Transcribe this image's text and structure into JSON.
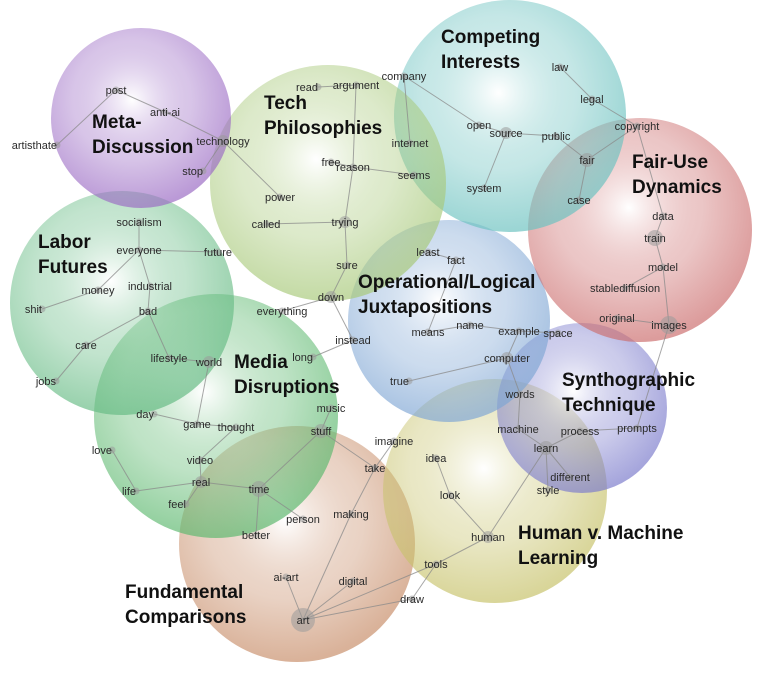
{
  "colors": {
    "meta": "#9b6bc4",
    "tech": "#a8c97a",
    "competing": "#6cc2c0",
    "fairuse": "#cc6e6e",
    "labor": "#66bb84",
    "operational": "#7fa6d4",
    "media": "#5cb86e",
    "synthographic": "#7c7ccc",
    "human": "#c7c26a",
    "fundamental": "#c88e6a"
  },
  "clusters": [
    {
      "key": "fundamental",
      "title_lines": [
        "Fundamental",
        "Comparisons"
      ]
    },
    {
      "key": "media",
      "title_lines": [
        "Media",
        "Disruptions"
      ]
    },
    {
      "key": "human",
      "title_lines": [
        "Human v. Machine",
        "Learning"
      ]
    },
    {
      "key": "synthographic",
      "title_lines": [
        "Synthographic",
        "Technique"
      ]
    },
    {
      "key": "operational",
      "title_lines": [
        "Operational/Logical",
        "Juxtapositions"
      ]
    },
    {
      "key": "labor",
      "title_lines": [
        "Labor",
        "Futures"
      ]
    },
    {
      "key": "fairuse",
      "title_lines": [
        "Fair-Use",
        "Dynamics"
      ]
    },
    {
      "key": "competing",
      "title_lines": [
        "Competing",
        "Interests"
      ]
    },
    {
      "key": "tech",
      "title_lines": [
        "Tech",
        "Philosophies"
      ]
    },
    {
      "key": "meta",
      "title_lines": [
        "Meta-",
        "Discussion"
      ]
    }
  ],
  "words": [
    {
      "id": "post",
      "label": "post"
    },
    {
      "id": "anti-ai",
      "label": "anti-ai"
    },
    {
      "id": "artisthate",
      "label": "artisthate"
    },
    {
      "id": "technology",
      "label": "technology"
    },
    {
      "id": "stop",
      "label": "stop"
    },
    {
      "id": "read",
      "label": "read"
    },
    {
      "id": "argument",
      "label": "argument"
    },
    {
      "id": "company",
      "label": "company"
    },
    {
      "id": "law",
      "label": "law"
    },
    {
      "id": "legal",
      "label": "legal"
    },
    {
      "id": "open",
      "label": "open"
    },
    {
      "id": "source",
      "label": "source"
    },
    {
      "id": "public",
      "label": "public"
    },
    {
      "id": "copyright",
      "label": "copyright"
    },
    {
      "id": "internet",
      "label": "internet"
    },
    {
      "id": "free",
      "label": "free"
    },
    {
      "id": "reason",
      "label": "reason"
    },
    {
      "id": "seems",
      "label": "seems"
    },
    {
      "id": "system",
      "label": "system"
    },
    {
      "id": "fair",
      "label": "fair"
    },
    {
      "id": "case",
      "label": "case"
    },
    {
      "id": "power",
      "label": "power"
    },
    {
      "id": "called",
      "label": "called"
    },
    {
      "id": "trying",
      "label": "trying"
    },
    {
      "id": "data",
      "label": "data"
    },
    {
      "id": "train",
      "label": "train"
    },
    {
      "id": "socialism",
      "label": "socialism"
    },
    {
      "id": "everyone",
      "label": "everyone"
    },
    {
      "id": "future",
      "label": "future"
    },
    {
      "id": "money",
      "label": "money"
    },
    {
      "id": "industrial",
      "label": "industrial"
    },
    {
      "id": "shit",
      "label": "shit"
    },
    {
      "id": "bad",
      "label": "bad"
    },
    {
      "id": "care",
      "label": "care"
    },
    {
      "id": "jobs",
      "label": "jobs"
    },
    {
      "id": "lifestyle",
      "label": "lifestyle"
    },
    {
      "id": "world",
      "label": "world"
    },
    {
      "id": "least",
      "label": "least"
    },
    {
      "id": "fact",
      "label": "fact"
    },
    {
      "id": "sure",
      "label": "sure"
    },
    {
      "id": "down",
      "label": "down"
    },
    {
      "id": "everything",
      "label": "everything"
    },
    {
      "id": "instead",
      "label": "instead"
    },
    {
      "id": "long",
      "label": "long"
    },
    {
      "id": "means",
      "label": "means"
    },
    {
      "id": "name",
      "label": "name"
    },
    {
      "id": "example",
      "label": "example"
    },
    {
      "id": "space",
      "label": "space"
    },
    {
      "id": "computer",
      "label": "computer"
    },
    {
      "id": "true",
      "label": "true"
    },
    {
      "id": "model",
      "label": "model"
    },
    {
      "id": "stablediffusion",
      "label": "stablediffusion"
    },
    {
      "id": "original",
      "label": "original"
    },
    {
      "id": "images",
      "label": "images"
    },
    {
      "id": "music",
      "label": "music"
    },
    {
      "id": "day",
      "label": "day"
    },
    {
      "id": "game",
      "label": "game"
    },
    {
      "id": "thought",
      "label": "thought"
    },
    {
      "id": "stuff",
      "label": "stuff"
    },
    {
      "id": "imagine",
      "label": "imagine"
    },
    {
      "id": "words",
      "label": "words"
    },
    {
      "id": "machine",
      "label": "machine"
    },
    {
      "id": "process",
      "label": "process"
    },
    {
      "id": "prompts",
      "label": "prompts"
    },
    {
      "id": "learn",
      "label": "learn"
    },
    {
      "id": "love",
      "label": "love"
    },
    {
      "id": "video",
      "label": "video"
    },
    {
      "id": "idea",
      "label": "idea"
    },
    {
      "id": "take",
      "label": "take"
    },
    {
      "id": "different",
      "label": "different"
    },
    {
      "id": "style",
      "label": "style"
    },
    {
      "id": "life",
      "label": "life"
    },
    {
      "id": "real",
      "label": "real"
    },
    {
      "id": "time",
      "label": "time"
    },
    {
      "id": "feel",
      "label": "feel"
    },
    {
      "id": "look",
      "label": "look"
    },
    {
      "id": "person",
      "label": "person"
    },
    {
      "id": "making",
      "label": "making"
    },
    {
      "id": "better",
      "label": "better"
    },
    {
      "id": "human",
      "label": "human"
    },
    {
      "id": "tools",
      "label": "tools"
    },
    {
      "id": "ai-art",
      "label": "ai-art"
    },
    {
      "id": "digital",
      "label": "digital"
    },
    {
      "id": "draw",
      "label": "draw"
    },
    {
      "id": "art",
      "label": "art"
    }
  ],
  "edges": [
    [
      "post",
      "anti-ai"
    ],
    [
      "post",
      "artisthate"
    ],
    [
      "anti-ai",
      "technology"
    ],
    [
      "technology",
      "stop"
    ],
    [
      "technology",
      "power"
    ],
    [
      "argument",
      "read"
    ],
    [
      "argument",
      "reason"
    ],
    [
      "reason",
      "free"
    ],
    [
      "reason",
      "seems"
    ],
    [
      "reason",
      "trying"
    ],
    [
      "trying",
      "called"
    ],
    [
      "trying",
      "sure"
    ],
    [
      "sure",
      "down"
    ],
    [
      "company",
      "internet"
    ],
    [
      "company",
      "open"
    ],
    [
      "open",
      "source"
    ],
    [
      "source",
      "system"
    ],
    [
      "source",
      "public"
    ],
    [
      "law",
      "legal"
    ],
    [
      "legal",
      "copyright"
    ],
    [
      "public",
      "fair"
    ],
    [
      "copyright",
      "fair"
    ],
    [
      "fair",
      "case"
    ],
    [
      "copyright",
      "data"
    ],
    [
      "data",
      "train"
    ],
    [
      "train",
      "model"
    ],
    [
      "model",
      "stablediffusion"
    ],
    [
      "model",
      "images"
    ],
    [
      "original",
      "images"
    ],
    [
      "socialism",
      "everyone"
    ],
    [
      "everyone",
      "future"
    ],
    [
      "everyone",
      "money"
    ],
    [
      "money",
      "shit"
    ],
    [
      "everyone",
      "industrial"
    ],
    [
      "industrial",
      "bad"
    ],
    [
      "bad",
      "care"
    ],
    [
      "care",
      "jobs"
    ],
    [
      "bad",
      "lifestyle"
    ],
    [
      "lifestyle",
      "world"
    ],
    [
      "least",
      "fact"
    ],
    [
      "fact",
      "means"
    ],
    [
      "means",
      "name"
    ],
    [
      "name",
      "example"
    ],
    [
      "example",
      "space"
    ],
    [
      "example",
      "computer"
    ],
    [
      "computer",
      "true"
    ],
    [
      "computer",
      "words"
    ],
    [
      "down",
      "instead"
    ],
    [
      "instead",
      "long"
    ],
    [
      "down",
      "everything"
    ],
    [
      "words",
      "machine"
    ],
    [
      "machine",
      "learn"
    ],
    [
      "learn",
      "process"
    ],
    [
      "process",
      "prompts"
    ],
    [
      "learn",
      "different"
    ],
    [
      "learn",
      "style"
    ],
    [
      "learn",
      "human"
    ],
    [
      "images",
      "prompts"
    ],
    [
      "world",
      "game"
    ],
    [
      "game",
      "day"
    ],
    [
      "game",
      "thought"
    ],
    [
      "thought",
      "video"
    ],
    [
      "video",
      "real"
    ],
    [
      "real",
      "feel"
    ],
    [
      "real",
      "time"
    ],
    [
      "love",
      "life"
    ],
    [
      "life",
      "real"
    ],
    [
      "time",
      "stuff"
    ],
    [
      "stuff",
      "music"
    ],
    [
      "stuff",
      "take"
    ],
    [
      "take",
      "imagine"
    ],
    [
      "time",
      "person"
    ],
    [
      "time",
      "better"
    ],
    [
      "take",
      "making"
    ],
    [
      "making",
      "art"
    ],
    [
      "idea",
      "look"
    ],
    [
      "look",
      "human"
    ],
    [
      "human",
      "tools"
    ],
    [
      "tools",
      "draw"
    ],
    [
      "tools",
      "art"
    ],
    [
      "art",
      "ai-art"
    ],
    [
      "art",
      "digital"
    ],
    [
      "draw",
      "art"
    ]
  ]
}
